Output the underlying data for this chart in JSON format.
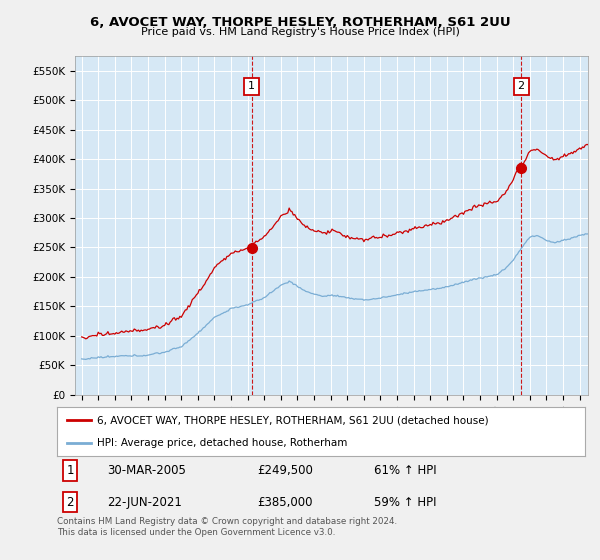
{
  "title": "6, AVOCET WAY, THORPE HESLEY, ROTHERHAM, S61 2UU",
  "subtitle": "Price paid vs. HM Land Registry's House Price Index (HPI)",
  "ylabel_ticks": [
    "£0",
    "£50K",
    "£100K",
    "£150K",
    "£200K",
    "£250K",
    "£300K",
    "£350K",
    "£400K",
    "£450K",
    "£500K",
    "£550K"
  ],
  "ytick_values": [
    0,
    50000,
    100000,
    150000,
    200000,
    250000,
    300000,
    350000,
    400000,
    450000,
    500000,
    550000
  ],
  "ylim": [
    0,
    575000
  ],
  "sale1_year": 2005.25,
  "sale1_price": 249500,
  "sale1_label": "1",
  "sale2_year": 2021.47,
  "sale2_price": 385000,
  "sale2_label": "2",
  "red_color": "#cc0000",
  "blue_color": "#7aadd4",
  "plot_bg_color": "#d6e8f5",
  "bg_color": "#f0f0f0",
  "grid_color": "#ffffff",
  "legend_label_red": "6, AVOCET WAY, THORPE HESLEY, ROTHERHAM, S61 2UU (detached house)",
  "legend_label_blue": "HPI: Average price, detached house, Rotherham",
  "table_row1": [
    "1",
    "30-MAR-2005",
    "£249,500",
    "61% ↑ HPI"
  ],
  "table_row2": [
    "2",
    "22-JUN-2021",
    "£385,000",
    "59% ↑ HPI"
  ],
  "footnote": "Contains HM Land Registry data © Crown copyright and database right 2024.\nThis data is licensed under the Open Government Licence v3.0.",
  "xmin": 1994.6,
  "xmax": 2025.5
}
